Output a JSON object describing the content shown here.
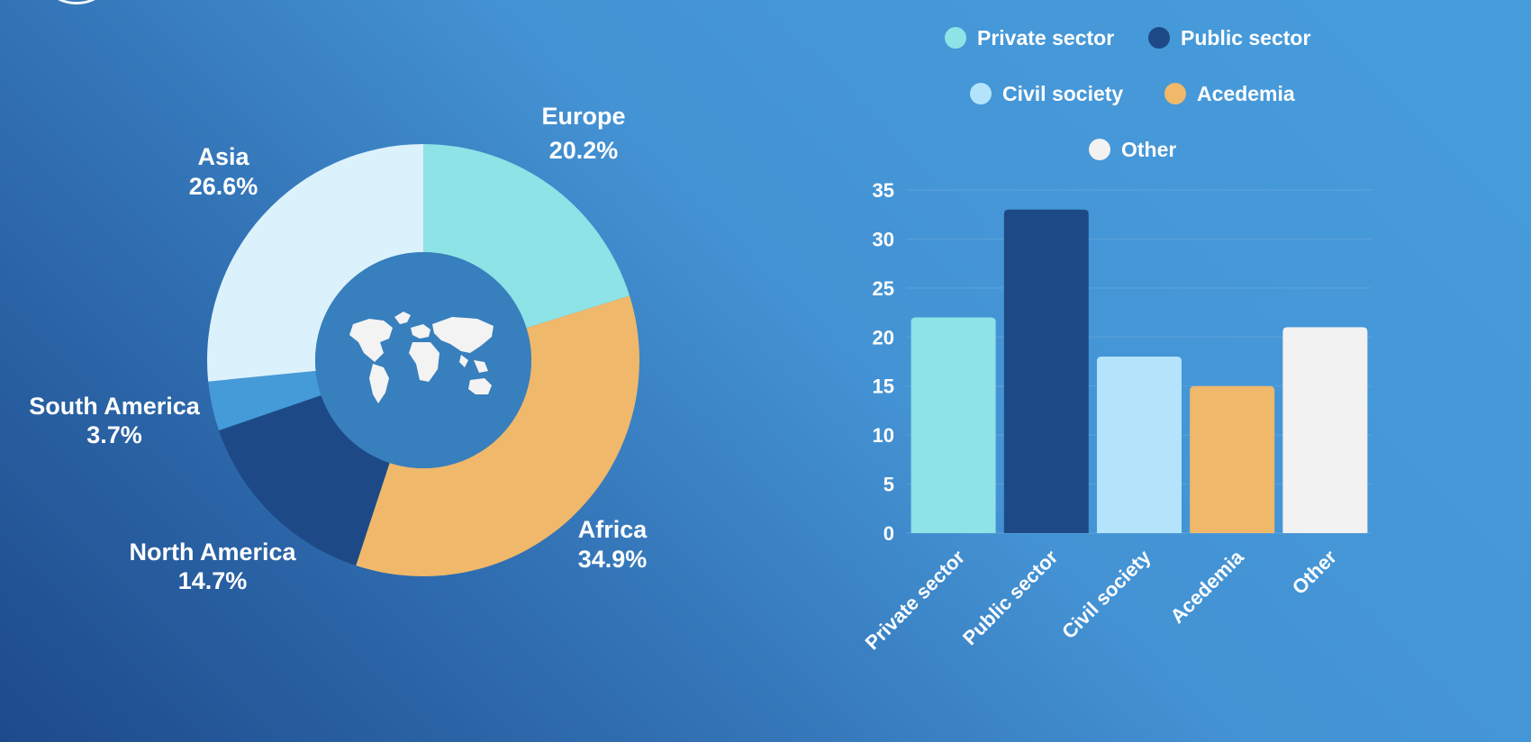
{
  "chart_data": [
    {
      "type": "pie",
      "variant": "donut",
      "slices": [
        {
          "label": "Europe",
          "pct_label": "20.2%",
          "value": 20.2,
          "color": "#8de3e6"
        },
        {
          "label": "Africa",
          "pct_label": "34.9%",
          "value": 34.9,
          "color": "#f0b86a"
        },
        {
          "label": "North America",
          "pct_label": "14.7%",
          "value": 14.7,
          "color": "#1d4a87"
        },
        {
          "label": "South America",
          "pct_label": "3.7%",
          "value": 3.7,
          "color": "#459ad8"
        },
        {
          "label": "Asia",
          "pct_label": "26.6%",
          "value": 26.6,
          "color": "#dbf1fb"
        }
      ],
      "center_icon": "world-map-icon",
      "center_color": "#387fbd"
    },
    {
      "type": "bar",
      "categories": [
        "Private sector",
        "Public sector",
        "Civil society",
        "Acedemia",
        "Other"
      ],
      "values": [
        22,
        33,
        18,
        15,
        21
      ],
      "colors": [
        "#8de3e6",
        "#1d4a87",
        "#b3e4fb",
        "#f0b86a",
        "#f2f2f2"
      ],
      "legend": [
        "Private sector",
        "Public sector",
        "Civil society",
        "Acedemia",
        "Other"
      ],
      "legend_position": "top",
      "yticks": [
        "0",
        "5",
        "10",
        "15",
        "20",
        "25",
        "30",
        "35"
      ],
      "ylim": [
        0,
        35
      ],
      "grid": true
    }
  ]
}
